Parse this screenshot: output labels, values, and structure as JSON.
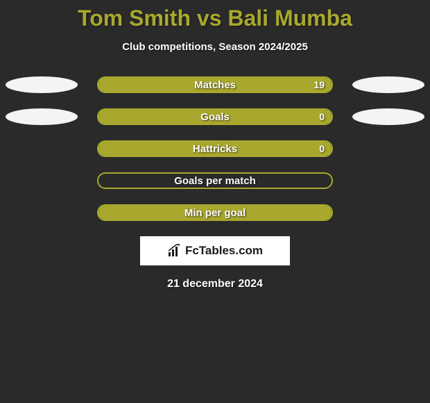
{
  "title": "Tom Smith vs Bali Mumba",
  "subtitle": "Club competitions, Season 2024/2025",
  "date": "21 december 2024",
  "logo_text": "FcTables.com",
  "colors": {
    "background": "#2a2a2a",
    "accent": "#a8a82e",
    "ellipse_left": "#f4f4f4",
    "ellipse_right": "#f4f4f4",
    "bar_border": "#a8a82e",
    "bar_fill": "#a8a82e",
    "text": "#ffffff"
  },
  "stats": [
    {
      "label": "Matches",
      "value": "19",
      "fill_pct": 100,
      "show_left_ellipse": true,
      "show_right_ellipse": true,
      "show_value": true
    },
    {
      "label": "Goals",
      "value": "0",
      "fill_pct": 100,
      "show_left_ellipse": true,
      "show_right_ellipse": true,
      "show_value": true
    },
    {
      "label": "Hattricks",
      "value": "0",
      "fill_pct": 100,
      "show_left_ellipse": false,
      "show_right_ellipse": false,
      "show_value": true
    },
    {
      "label": "Goals per match",
      "value": "",
      "fill_pct": 0,
      "show_left_ellipse": false,
      "show_right_ellipse": false,
      "show_value": false
    },
    {
      "label": "Min per goal",
      "value": "",
      "fill_pct": 100,
      "show_left_ellipse": false,
      "show_right_ellipse": false,
      "show_value": false
    }
  ]
}
